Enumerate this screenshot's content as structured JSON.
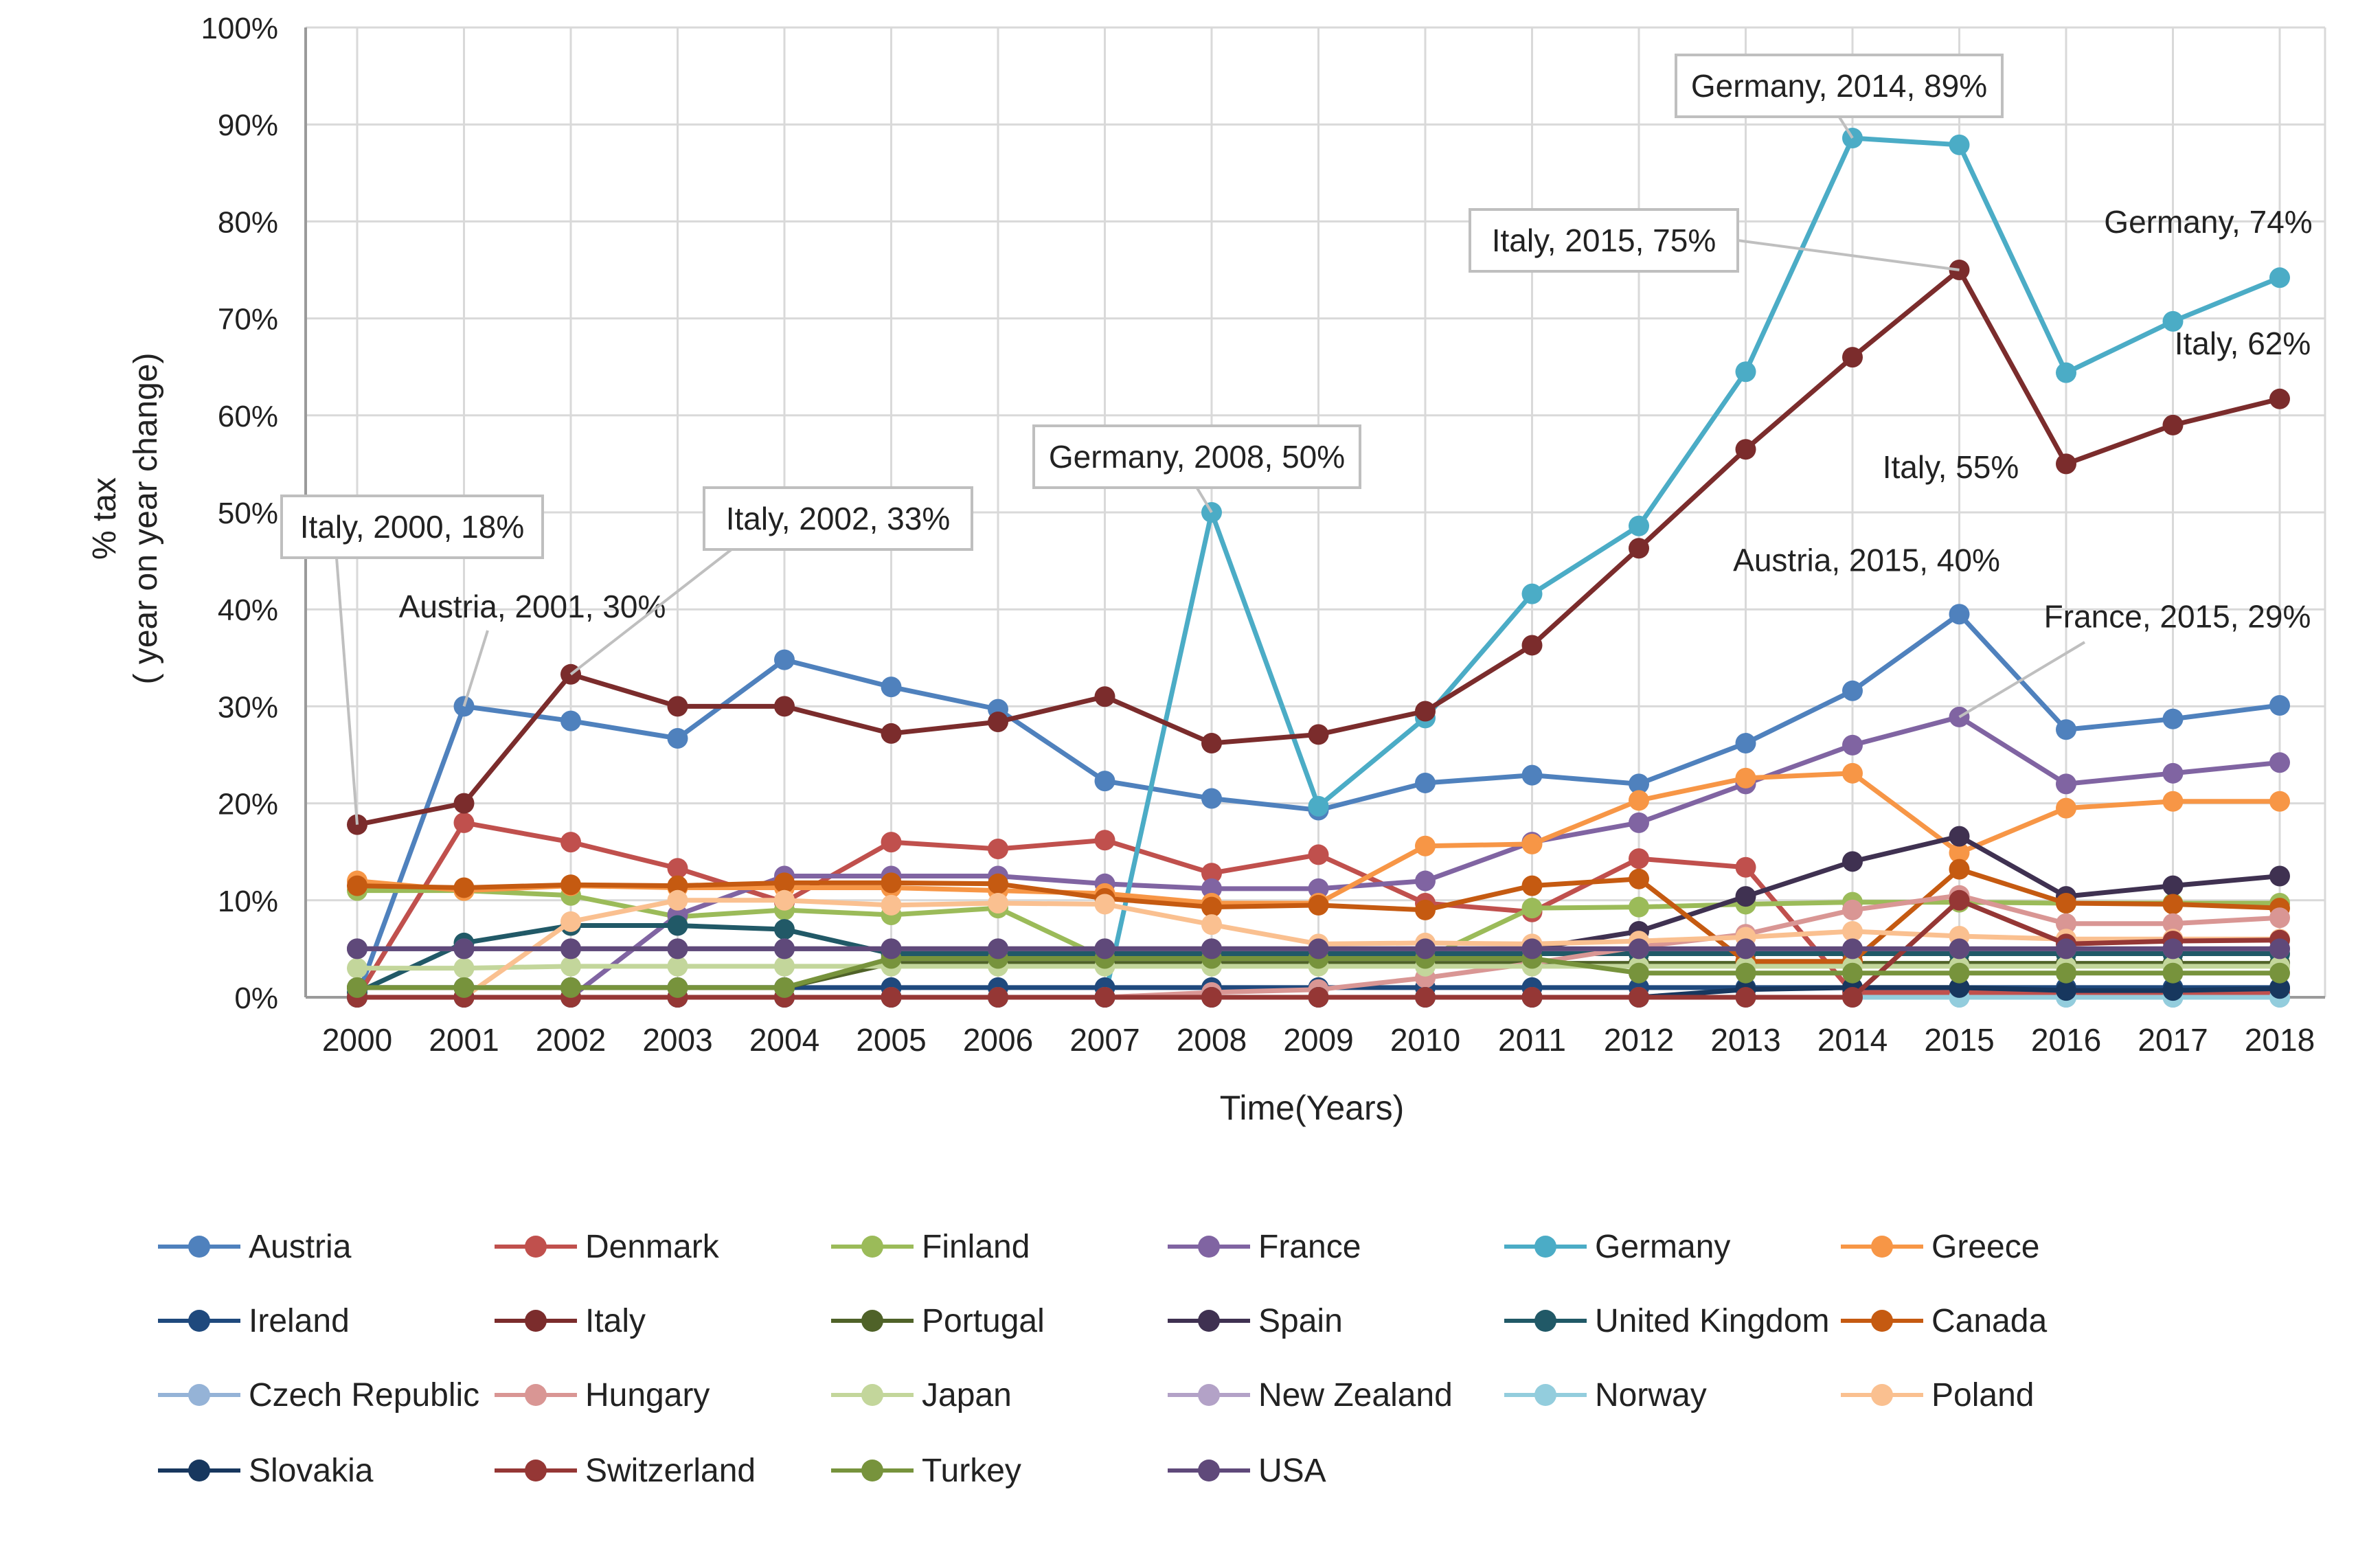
{
  "chart_data": {
    "type": "line",
    "title": "",
    "xlabel": "Time(Years)",
    "ylabel": "% tax",
    "ylabel_sub": "( year on year  change)",
    "ylim": [
      0,
      100
    ],
    "yticks": [
      "0%",
      "10%",
      "20%",
      "30%",
      "40%",
      "50%",
      "60%",
      "70%",
      "80%",
      "90%",
      "100%"
    ],
    "categories": [
      "2000",
      "2001",
      "2002",
      "2003",
      "2004",
      "2005",
      "2006",
      "2007",
      "2008",
      "2009",
      "2010",
      "2011",
      "2012",
      "2013",
      "2014",
      "2015",
      "2016",
      "2017",
      "2018"
    ],
    "series": [
      {
        "name": "Austria",
        "color": "#4f81bd",
        "values": [
          0,
          30,
          28.5,
          26.7,
          34.8,
          32,
          29.7,
          22.3,
          20.5,
          19.3,
          22.1,
          22.9,
          22,
          26.2,
          31.6,
          39.5,
          27.6,
          28.7,
          30.1
        ]
      },
      {
        "name": "Denmark",
        "color": "#c0504d",
        "values": [
          0,
          18,
          16,
          13.3,
          9.8,
          16,
          15.3,
          16.2,
          12.8,
          14.7,
          9.7,
          8.8,
          14.3,
          13.4,
          0.5,
          0.5,
          0.5,
          0.5,
          0.5
        ]
      },
      {
        "name": "Finland",
        "color": "#9bbb59",
        "values": [
          11,
          11,
          10.5,
          8.3,
          9,
          8.5,
          9.2,
          4,
          4,
          4,
          4,
          9.2,
          9.3,
          9.6,
          9.8,
          9.8,
          9.7,
          9.7,
          9.7
        ]
      },
      {
        "name": "France",
        "color": "#8064a2",
        "values": [
          0,
          0,
          0,
          8.5,
          12.5,
          12.5,
          12.5,
          11.7,
          11.2,
          11.2,
          12,
          16,
          18,
          22,
          26,
          28.9,
          22,
          23.1,
          24.2
        ]
      },
      {
        "name": "Germany",
        "color": "#4bacc6",
        "values": [
          0,
          0,
          0,
          0,
          0,
          0,
          0,
          0,
          50,
          19.7,
          28.8,
          41.6,
          48.6,
          64.5,
          88.6,
          87.9,
          64.4,
          69.7,
          74.2
        ]
      },
      {
        "name": "Greece",
        "color": "#f79646",
        "values": [
          12,
          11,
          11.5,
          11.3,
          11.3,
          11.3,
          11,
          10.7,
          9.7,
          9.7,
          15.6,
          15.8,
          20.3,
          22.6,
          23.1,
          14.9,
          19.5,
          20.2,
          20.2
        ]
      },
      {
        "name": "Ireland",
        "color": "#1f497d",
        "values": [
          1,
          1,
          1,
          1,
          1,
          1,
          1,
          1,
          1,
          1,
          1,
          1,
          1,
          1,
          1,
          1,
          1,
          1,
          1
        ]
      },
      {
        "name": "Italy",
        "color": "#7b2c2c",
        "values": [
          17.8,
          20,
          33.3,
          30,
          30,
          27.2,
          28.4,
          31,
          26.2,
          27.1,
          29.5,
          36.3,
          46.3,
          56.5,
          66,
          75,
          55,
          59,
          61.7
        ]
      },
      {
        "name": "Portugal",
        "color": "#4f6228",
        "values": [
          1,
          1,
          1,
          1,
          1,
          3.5,
          3.5,
          3.5,
          3.5,
          3.5,
          3.5,
          3.5,
          3.5,
          3.5,
          3.5,
          3.5,
          3.5,
          3.5,
          3.5
        ]
      },
      {
        "name": "Spain",
        "color": "#3f3151",
        "values": [
          5,
          5,
          5,
          5,
          5,
          5,
          5,
          5,
          5,
          5,
          5,
          5,
          6.8,
          10.4,
          14,
          16.6,
          10.4,
          11.5,
          12.5
        ]
      },
      {
        "name": "United Kingdom",
        "color": "#215967",
        "values": [
          0.5,
          5.6,
          7.4,
          7.4,
          7,
          4.5,
          4.5,
          4.5,
          4.5,
          4.5,
          4.5,
          4.5,
          4.5,
          4.5,
          4.5,
          4.5,
          4.5,
          4.5,
          4.5
        ]
      },
      {
        "name": "Canada",
        "color": "#c55a11",
        "values": [
          11.5,
          11.3,
          11.6,
          11.5,
          11.8,
          11.8,
          11.7,
          10.2,
          9.3,
          9.5,
          9,
          11.5,
          12.2,
          3.7,
          3.7,
          13.2,
          9.7,
          9.6,
          9.2
        ]
      },
      {
        "name": "Czech Republic",
        "color": "#95b3d7",
        "values": [
          0,
          0,
          0,
          0,
          0,
          0,
          0,
          0,
          0,
          0,
          0,
          0,
          0,
          0,
          0,
          0,
          0,
          0,
          0
        ]
      },
      {
        "name": "Hungary",
        "color": "#d99694",
        "values": [
          0,
          0,
          0,
          0,
          0,
          0,
          0,
          0,
          0.5,
          0.8,
          2,
          3.5,
          5.2,
          6.5,
          9,
          10.5,
          7.6,
          7.6,
          8.2
        ]
      },
      {
        "name": "Japan",
        "color": "#c3d69b",
        "values": [
          3,
          3,
          3.2,
          3.2,
          3.2,
          3.2,
          3.2,
          3.2,
          3.2,
          3.2,
          3.2,
          3.2,
          3.2,
          3.2,
          3.2,
          3.2,
          3.2,
          3.2,
          3.2
        ]
      },
      {
        "name": "New Zealand",
        "color": "#b3a2c7",
        "values": [
          5,
          5,
          5,
          5,
          5,
          5,
          5,
          5,
          5,
          5,
          5,
          5,
          5,
          5,
          5,
          5,
          5,
          5,
          5
        ]
      },
      {
        "name": "Norway",
        "color": "#93cddd",
        "values": [
          0,
          0,
          0,
          0,
          0,
          0,
          0,
          0,
          0,
          0,
          0,
          0,
          0,
          0,
          0,
          0,
          0,
          0,
          0
        ]
      },
      {
        "name": "Poland",
        "color": "#fac090",
        "values": [
          0,
          0,
          7.8,
          10,
          10,
          9.5,
          9.7,
          9.6,
          7.5,
          5.5,
          5.6,
          5.5,
          5.8,
          6.2,
          6.8,
          6.3,
          6,
          6,
          6
        ]
      },
      {
        "name": "Slovakia",
        "color": "#17375e",
        "values": [
          0,
          0,
          0,
          0,
          0,
          0,
          0,
          0,
          0,
          0,
          0,
          0,
          0,
          0.8,
          1,
          1,
          0.7,
          0.7,
          0.9
        ]
      },
      {
        "name": "Switzerland",
        "color": "#953735",
        "values": [
          0,
          0,
          0,
          0,
          0,
          0,
          0,
          0,
          0,
          0,
          0,
          0,
          0,
          0,
          0,
          10,
          5.5,
          5.8,
          5.9
        ]
      },
      {
        "name": "Turkey",
        "color": "#77933c",
        "values": [
          1,
          1,
          1,
          1,
          1,
          4,
          4,
          4,
          4,
          4,
          4,
          4,
          2.5,
          2.5,
          2.5,
          2.5,
          2.5,
          2.5,
          2.5
        ]
      },
      {
        "name": "USA",
        "color": "#5f497a",
        "values": [
          5,
          5,
          5,
          5,
          5,
          5,
          5,
          5,
          5,
          5,
          5,
          5,
          5,
          5,
          5,
          5,
          5,
          5,
          5
        ]
      }
    ],
    "annotations": [
      {
        "text": "Italy, 2000, 18%",
        "series": "Italy",
        "year": "2000",
        "boxed": true
      },
      {
        "text": "Austria, 2001, 30%",
        "series": "Austria",
        "year": "2001",
        "boxed": false
      },
      {
        "text": "Italy, 2002, 33%",
        "series": "Italy",
        "year": "2002",
        "boxed": true
      },
      {
        "text": "Germany, 2008, 50%",
        "series": "Germany",
        "year": "2008",
        "boxed": true
      },
      {
        "text": "Germany, 2014, 89%",
        "series": "Germany",
        "year": "2014",
        "boxed": true
      },
      {
        "text": "Italy, 2015, 75%",
        "series": "Italy",
        "year": "2015",
        "boxed": true
      },
      {
        "text": "Germany, 74%",
        "series": "Germany",
        "year": "2018",
        "boxed": false
      },
      {
        "text": "Italy, 62%",
        "series": "Italy",
        "year": "2018",
        "boxed": false
      },
      {
        "text": "Italy, 55%",
        "series": "Italy",
        "year": "2016",
        "boxed": false
      },
      {
        "text": "Austria, 2015, 40%",
        "series": "Austria",
        "year": "2015",
        "boxed": false
      },
      {
        "text": "France, 2015, 29%",
        "series": "France",
        "year": "2015",
        "boxed": false
      }
    ],
    "legend_position": "bottom",
    "grid": true
  }
}
